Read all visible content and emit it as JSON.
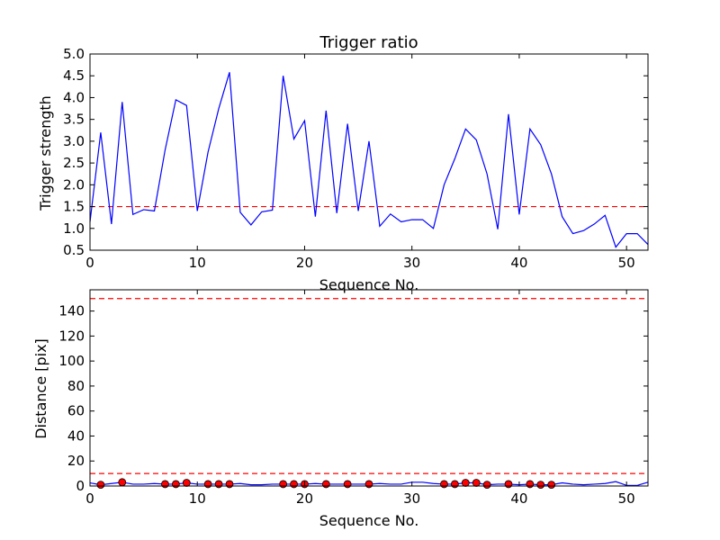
{
  "chart_data": [
    {
      "type": "line",
      "title": "Trigger ratio",
      "xlabel": "Sequence No.",
      "ylabel": "Trigger strength",
      "xlim": [
        0,
        52
      ],
      "ylim": [
        0.5,
        5.0
      ],
      "xticks": [
        0,
        10,
        20,
        30,
        40,
        50
      ],
      "xtick_labels": [
        "0",
        "10",
        "20",
        "30",
        "40",
        "50"
      ],
      "yticks": [
        0.5,
        1.0,
        1.5,
        2.0,
        2.5,
        3.0,
        3.5,
        4.0,
        4.5,
        5.0
      ],
      "ytick_labels": [
        "0.5",
        "1.0",
        "1.5",
        "2.0",
        "2.5",
        "3.0",
        "3.5",
        "4.0",
        "4.5",
        "5.0"
      ],
      "grid": false,
      "series": [
        {
          "color": "#0000ff",
          "style": "solid",
          "x": [
            0,
            1,
            2,
            3,
            4,
            5,
            6,
            7,
            8,
            9,
            10,
            11,
            12,
            13,
            14,
            15,
            16,
            17,
            18,
            19,
            20,
            21,
            22,
            23,
            24,
            25,
            26,
            27,
            28,
            29,
            30,
            31,
            32,
            33,
            34,
            35,
            36,
            37,
            38,
            39,
            40,
            41,
            42,
            43,
            44,
            45,
            46,
            47,
            48,
            49,
            50,
            51,
            52
          ],
          "values": [
            1.15,
            3.2,
            1.1,
            3.9,
            1.32,
            1.43,
            1.4,
            2.8,
            3.95,
            3.82,
            1.4,
            2.75,
            3.75,
            4.58,
            1.37,
            1.08,
            1.38,
            1.42,
            4.5,
            3.05,
            3.47,
            1.27,
            3.7,
            1.35,
            3.4,
            1.4,
            3.0,
            1.05,
            1.33,
            1.15,
            1.2,
            1.2,
            1.0,
            2.0,
            2.6,
            3.28,
            3.03,
            2.25,
            0.98,
            3.62,
            1.32,
            3.28,
            2.92,
            2.25,
            1.27,
            0.88,
            0.95,
            1.1,
            1.3,
            0.57,
            0.88,
            0.88,
            0.63
          ]
        }
      ],
      "reference_lines": [
        {
          "y": 1.5,
          "color": "#ff0000",
          "style": "dashed"
        }
      ]
    },
    {
      "type": "line",
      "title": "",
      "xlabel": "Sequence No.",
      "ylabel": "Distance [pix]",
      "xlim": [
        0,
        52
      ],
      "ylim": [
        0,
        157
      ],
      "xticks": [
        0,
        10,
        20,
        30,
        40,
        50
      ],
      "xtick_labels": [
        "0",
        "10",
        "20",
        "30",
        "40",
        "50"
      ],
      "yticks": [
        0,
        20,
        40,
        60,
        80,
        100,
        120,
        140
      ],
      "ytick_labels": [
        "0",
        "20",
        "40",
        "60",
        "80",
        "100",
        "120",
        "140"
      ],
      "grid": false,
      "series": [
        {
          "color": "#0000ff",
          "style": "solid",
          "x": [
            0,
            1,
            2,
            3,
            4,
            5,
            6,
            7,
            8,
            9,
            10,
            11,
            12,
            13,
            14,
            15,
            16,
            17,
            18,
            19,
            20,
            21,
            22,
            23,
            24,
            25,
            26,
            27,
            28,
            29,
            30,
            31,
            32,
            33,
            34,
            35,
            36,
            37,
            38,
            39,
            40,
            41,
            42,
            43,
            44,
            45,
            46,
            47,
            48,
            49,
            50,
            51,
            52
          ],
          "values": [
            2.5,
            1.0,
            2.0,
            3.0,
            1.5,
            1.5,
            2.0,
            1.5,
            1.5,
            2.5,
            1.5,
            1.5,
            1.5,
            1.5,
            2.0,
            1.0,
            1.0,
            1.5,
            1.5,
            1.5,
            1.5,
            2.0,
            1.5,
            1.5,
            1.5,
            1.5,
            1.5,
            2.0,
            1.5,
            1.5,
            3.0,
            3.0,
            2.0,
            1.5,
            1.5,
            2.5,
            2.5,
            1.0,
            1.5,
            1.5,
            1.0,
            1.5,
            1.0,
            1.0,
            2.5,
            1.5,
            1.0,
            1.5,
            2.0,
            3.5,
            0.5,
            0.5,
            3.0
          ]
        },
        {
          "color": "#ff0000",
          "style": "markers",
          "x": [
            1,
            3,
            7,
            8,
            9,
            11,
            12,
            13,
            18,
            19,
            20,
            22,
            24,
            26,
            33,
            34,
            35,
            36,
            37,
            39,
            41,
            42,
            43
          ],
          "values": [
            1.0,
            3.0,
            1.5,
            1.5,
            2.5,
            1.5,
            1.5,
            1.5,
            1.5,
            1.5,
            1.5,
            1.5,
            1.5,
            1.5,
            1.5,
            1.5,
            2.5,
            2.5,
            1.0,
            1.5,
            1.5,
            1.0,
            1.0
          ]
        }
      ],
      "reference_lines": [
        {
          "y": 150,
          "color": "#ff0000",
          "style": "dashed"
        },
        {
          "y": 10,
          "color": "#ff0000",
          "style": "dashed"
        }
      ]
    }
  ]
}
